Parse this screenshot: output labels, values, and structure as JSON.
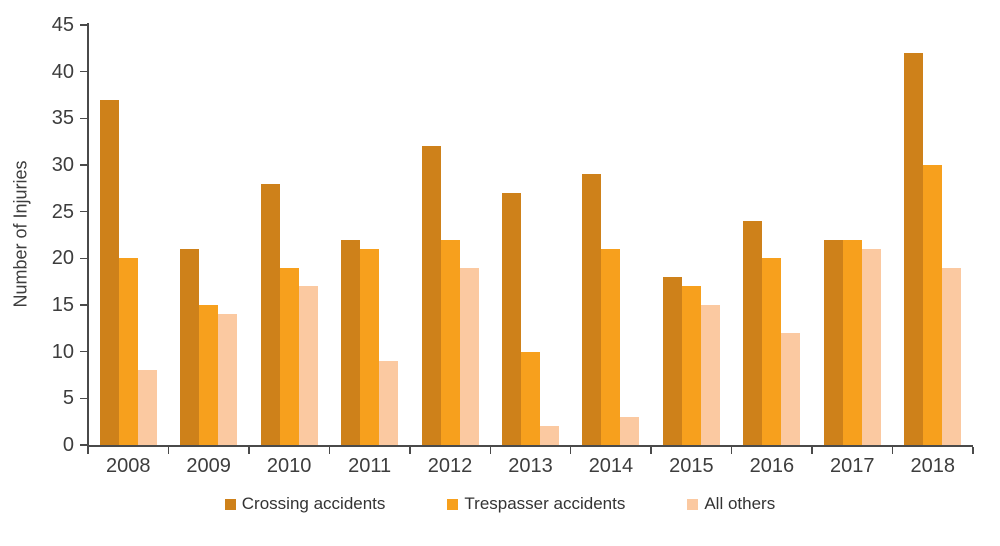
{
  "chart_data": {
    "type": "bar",
    "title": "",
    "xlabel": "",
    "ylabel": "Number of Injuries",
    "ylim": [
      0,
      45
    ],
    "yticks": [
      0,
      5,
      10,
      15,
      20,
      25,
      30,
      35,
      40,
      45
    ],
    "grid": false,
    "legend_position": "bottom",
    "categories": [
      "2008",
      "2009",
      "2010",
      "2011",
      "2012",
      "2013",
      "2014",
      "2015",
      "2016",
      "2017",
      "2018"
    ],
    "series": [
      {
        "name": "Crossing accidents",
        "color": "#CE811A",
        "values": [
          37,
          21,
          28,
          22,
          32,
          27,
          29,
          18,
          24,
          22,
          42
        ]
      },
      {
        "name": "Trespasser accidents",
        "color": "#F7A01D",
        "values": [
          20,
          15,
          19,
          21,
          22,
          10,
          21,
          17,
          20,
          22,
          30
        ]
      },
      {
        "name": "All others",
        "color": "#FBC9A1",
        "values": [
          8,
          14,
          17,
          9,
          19,
          2,
          3,
          15,
          12,
          21,
          19
        ]
      }
    ]
  },
  "colors": {
    "axis": "#4a4a4a",
    "text": "#3d3d3d",
    "background": "#ffffff"
  }
}
